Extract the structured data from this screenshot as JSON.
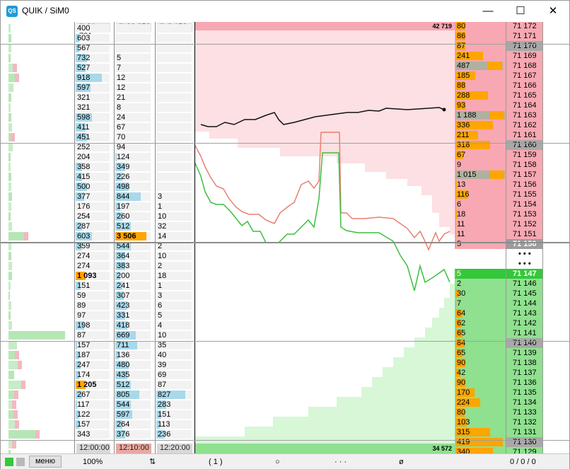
{
  "window": {
    "title": "QUIK / SiM0",
    "app_icon_text": "QS",
    "minimize_glyph": "—",
    "maximize_glyph": "☐",
    "close_glyph": "✕"
  },
  "columns": {
    "volume1": {
      "header": "31 781",
      "values": [
        "400",
        "603",
        "567",
        "732",
        "527",
        "918",
        "597",
        "321",
        "321",
        "598",
        "411",
        "451",
        "252",
        "204",
        "358",
        "415",
        "500",
        "377",
        "176",
        "254",
        "287",
        "603",
        "359",
        "274",
        "274",
        "1 093",
        "151",
        "59",
        "89",
        "97",
        "198",
        "87",
        "157",
        "187",
        "247",
        "174",
        "1 205",
        "267",
        "117",
        "122",
        "157",
        "343"
      ],
      "bars": [
        0,
        0.1,
        0.1,
        0.35,
        0.3,
        0.8,
        0.45,
        0,
        0,
        0.5,
        0.3,
        0.35,
        0,
        0,
        0.2,
        0.2,
        0.35,
        0.25,
        0,
        0,
        0.2,
        0.5,
        0.2,
        0,
        0,
        0.85,
        0.15,
        0,
        0,
        0,
        0.25,
        0,
        0.05,
        0.1,
        0.15,
        0.1,
        0.85,
        0.2,
        0.05,
        0.1,
        0.1,
        0
      ]
    },
    "volume2": {
      "header": "26 056",
      "values": [
        "",
        "",
        "",
        "5",
        "7",
        "12",
        "12",
        "21",
        "8",
        "24",
        "67",
        "70",
        "94",
        "124",
        "349",
        "226",
        "498",
        "844",
        "197",
        "260",
        "512",
        "3 506",
        "544",
        "364",
        "383",
        "200",
        "241",
        "307",
        "423",
        "331",
        "418",
        "669",
        "711",
        "136",
        "480",
        "435",
        "512",
        "805",
        "544",
        "597",
        "264",
        "376"
      ],
      "bars": [
        0,
        0,
        0,
        0,
        0,
        0,
        0,
        0,
        0,
        0,
        0,
        0,
        0,
        0.05,
        0.3,
        0.2,
        0.4,
        0.75,
        0.15,
        0.2,
        0.45,
        0,
        0.45,
        0.3,
        0.3,
        0.15,
        0.2,
        0.25,
        0.35,
        0.3,
        0.35,
        0.6,
        0.65,
        0.1,
        0.4,
        0.35,
        0.45,
        0.7,
        0.45,
        0.5,
        0.2,
        0.3
      ]
    },
    "volume3": {
      "header": "8 153",
      "values": [
        "",
        "",
        "",
        "",
        "",
        "",
        "",
        "",
        "",
        "",
        "",
        "",
        "",
        "",
        "",
        "",
        "",
        "3",
        "1",
        "10",
        "32",
        "14",
        "2",
        "10",
        "2",
        "18",
        "1",
        "3",
        "6",
        "5",
        "4",
        "10",
        "35",
        "40",
        "39",
        "69",
        "87",
        "827",
        "283",
        "151",
        "113",
        "236"
      ],
      "bars": [
        0,
        0,
        0,
        0,
        0,
        0,
        0,
        0,
        0,
        0,
        0,
        0,
        0,
        0,
        0,
        0,
        0,
        0,
        0,
        0,
        0,
        0,
        0,
        0,
        0,
        0,
        0,
        0,
        0,
        0,
        0,
        0,
        0,
        0,
        0,
        0,
        0,
        0.85,
        0.3,
        0.15,
        0.1,
        0.25
      ]
    },
    "footer_times": [
      "12:00:00",
      "12:10:00",
      "12:20:00"
    ],
    "orderbook": {
      "ask_top_total": "42 719",
      "bid_bottom_total": "34 572",
      "sizes": [
        "80",
        "86",
        "87",
        "241",
        "487",
        "185",
        "88",
        "288",
        "93",
        "1 188",
        "336",
        "211",
        "318",
        "67",
        "9",
        "1 015",
        "13",
        "116",
        "6",
        "18",
        "11",
        "11",
        "5",
        "",
        "",
        "5",
        "2",
        "30",
        "7",
        "64",
        "62",
        "65",
        "84",
        "65",
        "90",
        "42",
        "90",
        "170",
        "224",
        "80",
        "103",
        "315",
        "419",
        "340"
      ],
      "size_bars": [
        0.2,
        0.2,
        0.2,
        0.55,
        0.95,
        0.4,
        0.2,
        0.65,
        0.2,
        1,
        0.75,
        0.45,
        0.7,
        0.15,
        0.02,
        1,
        0.03,
        0.25,
        0.01,
        0.04,
        0.02,
        0.02,
        0.01,
        0,
        0,
        0.01,
        0,
        0.07,
        0.02,
        0.14,
        0.13,
        0.14,
        0.18,
        0.14,
        0.2,
        0.1,
        0.2,
        0.38,
        0.5,
        0.18,
        0.23,
        0.7,
        0.95,
        0.75
      ],
      "prices": [
        "71 172",
        "71 171",
        "71 170",
        "71 169",
        "71 168",
        "71 167",
        "71 166",
        "71 165",
        "71 164",
        "71 163",
        "71 162",
        "71 161",
        "71 160",
        "71 159",
        "71 158",
        "71 157",
        "71 156",
        "71 155",
        "71 154",
        "71 153",
        "71 152",
        "71 151",
        "71 150",
        "• • •",
        "• • •",
        "71 147",
        "71 146",
        "71 145",
        "71 144",
        "71 143",
        "71 142",
        "71 141",
        "71 140",
        "71 139",
        "71 138",
        "71 137",
        "71 136",
        "71 135",
        "71 134",
        "71 133",
        "71 132",
        "71 131",
        "71 130",
        "71 129"
      ],
      "best_ask_index": 22,
      "best_bid_index": 25,
      "highlight_rows": [
        2,
        12,
        32,
        42
      ]
    }
  },
  "colors": {
    "ask": "#f7a8b2",
    "ask_light": "#fde0e3",
    "bid": "#8fe08f",
    "bid_light": "#d7f7d7",
    "best_bid": "#34c83a",
    "size_bar": "#ffa500",
    "volume_bar": "#a8d8ea",
    "big_volume": "#ffa500",
    "price_line": "#111111",
    "ask_line": "#e88070",
    "bid_line": "#3cbf3c"
  },
  "statusbar": {
    "menu_label": "меню",
    "zoom": "100%",
    "sort_glyph": "⇅",
    "count": "( 1 )",
    "circle_glyph": "○",
    "dots": "· · ·",
    "empty_glyph": "ø",
    "counters": "0 / 0 / 0"
  }
}
